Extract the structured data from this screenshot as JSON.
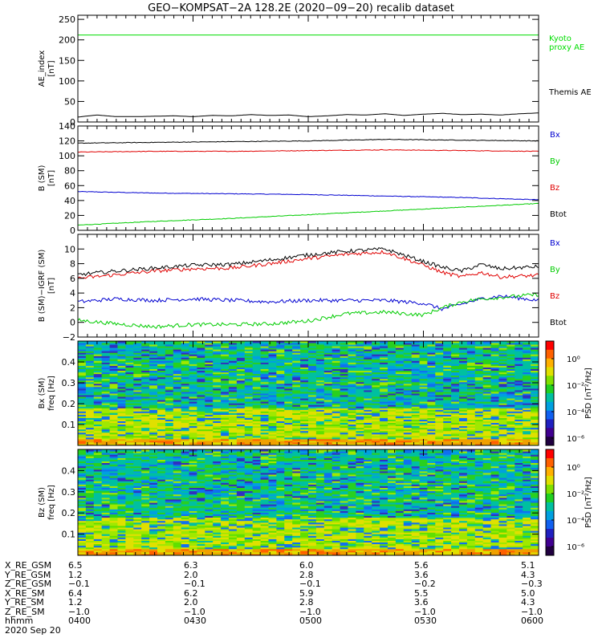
{
  "title": "GEO−KOMPSAT−2A 128.2E (2020−09−20) recalib dataset",
  "colors": {
    "black": "#000000",
    "red": "#e00000",
    "green": "#00cc00",
    "blue": "#0000d0",
    "kyoto": "#00dd00"
  },
  "chart_data": [
    {
      "type": "line",
      "panel": "ae",
      "ylabel_lines": [
        "AE_index",
        "[nT]"
      ],
      "ylim": [
        0,
        260
      ],
      "yticks": [
        0,
        50,
        100,
        150,
        200,
        250
      ],
      "series": [
        {
          "name": "Kyoto proxy AE",
          "label_lines": [
            "Kyoto",
            "proxy AE"
          ],
          "color": "#00dd00",
          "x": [
            0,
            120
          ],
          "y": [
            212,
            212
          ]
        },
        {
          "name": "Themis AE",
          "label_lines": [
            "Themis AE"
          ],
          "color": "#000000",
          "x": [
            0,
            5,
            10,
            15,
            20,
            25,
            30,
            35,
            40,
            45,
            50,
            55,
            60,
            65,
            70,
            75,
            80,
            85,
            90,
            95,
            100,
            105,
            110,
            115,
            120
          ],
          "y": [
            12,
            17,
            13,
            13,
            14,
            15,
            13,
            16,
            15,
            18,
            16,
            17,
            13,
            15,
            18,
            17,
            20,
            16,
            19,
            21,
            18,
            19,
            17,
            20,
            22
          ]
        }
      ]
    },
    {
      "type": "line",
      "panel": "b_sm",
      "ylabel_lines": [
        "B (SM)",
        "[nT]"
      ],
      "ylim": [
        0,
        140
      ],
      "yticks": [
        0,
        20,
        40,
        60,
        80,
        100,
        120,
        140
      ],
      "series": [
        {
          "name": "Bx",
          "color": "#0000d0",
          "x": [
            0,
            20,
            40,
            60,
            80,
            100,
            120
          ],
          "y": [
            52,
            50,
            49,
            48,
            46,
            44,
            41
          ]
        },
        {
          "name": "By",
          "color": "#00cc00",
          "x": [
            0,
            20,
            40,
            60,
            80,
            100,
            120
          ],
          "y": [
            7,
            12,
            16,
            21,
            26,
            31,
            36
          ]
        },
        {
          "name": "Bz",
          "color": "#e00000",
          "x": [
            0,
            20,
            40,
            60,
            80,
            100,
            120
          ],
          "y": [
            105,
            106,
            106,
            107,
            108,
            107,
            106
          ]
        },
        {
          "name": "Btot",
          "color": "#000000",
          "x": [
            0,
            20,
            40,
            60,
            80,
            100,
            120
          ],
          "y": [
            117,
            118,
            119,
            120,
            122,
            121,
            120
          ]
        }
      ]
    },
    {
      "type": "line",
      "panel": "db",
      "ylabel_lines": [
        "B (SM)−IGRF (SM)",
        "[nT]"
      ],
      "ylim": [
        -2,
        12
      ],
      "yticks": [
        -2,
        0,
        2,
        4,
        6,
        8,
        10
      ],
      "series": [
        {
          "name": "Bx",
          "color": "#0000d0",
          "x": [
            0,
            10,
            20,
            30,
            40,
            50,
            60,
            70,
            80,
            90,
            95,
            100,
            105,
            110,
            120
          ],
          "y": [
            2.8,
            3.2,
            3.0,
            3.2,
            3.0,
            2.8,
            3.0,
            3.0,
            3.0,
            2.6,
            1.8,
            2.5,
            3.2,
            3.6,
            3.0
          ]
        },
        {
          "name": "By",
          "color": "#00cc00",
          "x": [
            0,
            10,
            20,
            30,
            40,
            50,
            60,
            70,
            80,
            90,
            95,
            100,
            105,
            110,
            120
          ],
          "y": [
            0.3,
            -0.2,
            -0.6,
            -0.3,
            -0.3,
            -0.2,
            0.2,
            1.2,
            1.4,
            1.0,
            2.0,
            2.8,
            3.2,
            3.4,
            3.8
          ]
        },
        {
          "name": "Bz",
          "color": "#e00000",
          "x": [
            0,
            10,
            20,
            30,
            40,
            50,
            60,
            70,
            80,
            90,
            95,
            100,
            105,
            110,
            120
          ],
          "y": [
            6.0,
            6.5,
            7.0,
            7.3,
            7.4,
            8.0,
            8.7,
            9.3,
            9.6,
            7.8,
            6.8,
            6.2,
            6.8,
            6.2,
            6.4
          ]
        },
        {
          "name": "Btot",
          "color": "#000000",
          "x": [
            0,
            10,
            20,
            30,
            40,
            50,
            60,
            70,
            80,
            90,
            95,
            100,
            105,
            110,
            120
          ],
          "y": [
            6.5,
            7.0,
            7.4,
            7.8,
            7.9,
            8.5,
            9.2,
            9.7,
            10.0,
            8.3,
            7.5,
            7.0,
            7.9,
            7.3,
            7.6
          ]
        }
      ]
    },
    {
      "type": "heatmap",
      "panel": "bx_psd",
      "ylabel_lines": [
        "Bx (SM)",
        "freq [Hz]"
      ],
      "ylim": [
        0,
        0.5
      ],
      "yticks": [
        0.1,
        0.2,
        0.3,
        0.4
      ],
      "colorbar_label": "PSD [nT²/Hz]",
      "colorbar_ticks": [
        "10⁰",
        "10⁻²",
        "10⁻⁴",
        "10⁻⁶"
      ]
    },
    {
      "type": "heatmap",
      "panel": "bz_psd",
      "ylabel_lines": [
        "Bz (SM)",
        "freq [Hz]"
      ],
      "ylim": [
        0,
        0.5
      ],
      "yticks": [
        0.1,
        0.2,
        0.3,
        0.4
      ],
      "colorbar_label": "PSD [nT²/Hz]",
      "colorbar_ticks": [
        "10⁰",
        "10⁻²",
        "10⁻⁴",
        "10⁻⁶"
      ]
    }
  ],
  "ephemeris": {
    "labels": [
      "X_RE_GSM",
      "Y_RE_GSM",
      "Z_RE_GSM",
      "X_RE_SM",
      "Y_RE_SM",
      "Z_RE_SM",
      "hhmm",
      "2020 Sep 20"
    ],
    "columns": [
      [
        "6.5",
        "1.2",
        "−0.1",
        "6.4",
        "1.2",
        "−1.0",
        "0400"
      ],
      [
        "6.3",
        "2.0",
        "−0.1",
        "6.2",
        "2.0",
        "−1.0",
        "0430"
      ],
      [
        "6.0",
        "2.8",
        "−0.1",
        "5.9",
        "2.8",
        "−1.0",
        "0500"
      ],
      [
        "5.6",
        "3.6",
        "−0.2",
        "5.5",
        "3.6",
        "−1.0",
        "0530"
      ],
      [
        "5.1",
        "4.3",
        "−0.3",
        "5.0",
        "4.3",
        "−1.0",
        "0600"
      ]
    ]
  }
}
